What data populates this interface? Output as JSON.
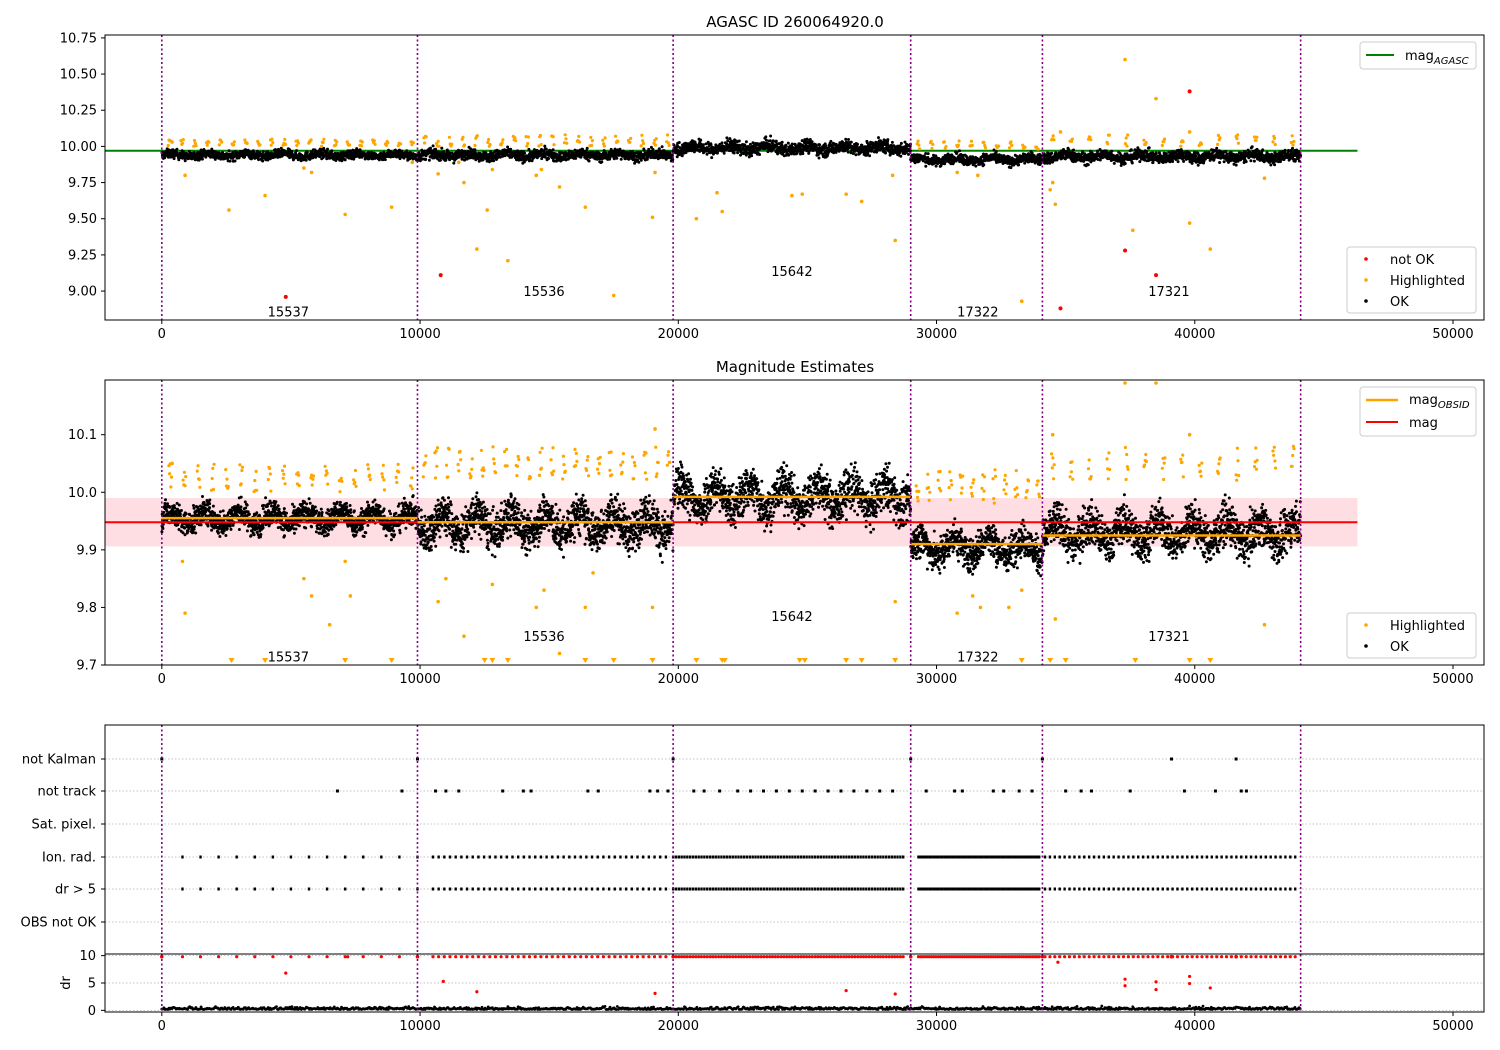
{
  "colors": {
    "not_ok": "#ff0000",
    "highlighted": "#ffa500",
    "ok": "#000000",
    "agasc_line": "#008000",
    "obsid_line": "#ffa500",
    "mag_line": "#ff0000",
    "band": "#ffb6c1",
    "vline": "#800080",
    "grid": "#b0b0b0"
  },
  "chart_data": [
    {
      "type": "scatter",
      "title": "AGASC ID 260064920.0",
      "x_ticks": [
        0,
        10000,
        20000,
        30000,
        40000,
        50000
      ],
      "y_ticks": [
        "9.00",
        "9.25",
        "9.50",
        "9.75",
        "10.00",
        "10.25",
        "10.50",
        "10.75"
      ],
      "xlim": [
        -2200,
        51200
      ],
      "ylim": [
        8.8,
        10.77
      ],
      "obsid_boundaries": [
        0,
        9900,
        19800,
        29000,
        34100,
        44100
      ],
      "obsids": [
        {
          "label": "15537",
          "x": 4900,
          "y": 8.86
        },
        {
          "label": "15536",
          "x": 14800,
          "y": 9.0
        },
        {
          "label": "15642",
          "x": 24400,
          "y": 9.14
        },
        {
          "label": "17322",
          "x": 31600,
          "y": 8.86
        },
        {
          "label": "17321",
          "x": 39000,
          "y": 9.0
        }
      ],
      "mag_agasc": 9.97,
      "mag_agasc_xrange": [
        -2200,
        46300
      ],
      "ok_segments": [
        {
          "x": [
            0,
            9900
          ],
          "center": 9.94,
          "spread": 0.03
        },
        {
          "x": [
            9900,
            19800
          ],
          "center": 9.94,
          "spread": 0.035
        },
        {
          "x": [
            19800,
            29000
          ],
          "center": 9.99,
          "spread": 0.045
        },
        {
          "x": [
            29000,
            34100
          ],
          "center": 9.91,
          "spread": 0.035
        },
        {
          "x": [
            34100,
            44100
          ],
          "center": 9.93,
          "spread": 0.04
        }
      ],
      "highlighted_points": [
        [
          400,
          10.03
        ],
        [
          900,
          9.8
        ],
        [
          2600,
          9.56
        ],
        [
          4000,
          9.66
        ],
        [
          5500,
          9.85
        ],
        [
          5800,
          9.82
        ],
        [
          7100,
          9.53
        ],
        [
          8900,
          9.58
        ],
        [
          9700,
          9.89
        ],
        [
          10700,
          9.81
        ],
        [
          11500,
          9.89
        ],
        [
          11700,
          9.75
        ],
        [
          12200,
          9.29
        ],
        [
          12600,
          9.56
        ],
        [
          12800,
          9.84
        ],
        [
          13400,
          9.21
        ],
        [
          14500,
          9.8
        ],
        [
          14700,
          9.84
        ],
        [
          15400,
          9.72
        ],
        [
          16400,
          9.58
        ],
        [
          17500,
          8.97
        ],
        [
          19000,
          9.51
        ],
        [
          19100,
          9.82
        ],
        [
          20700,
          9.5
        ],
        [
          21500,
          9.68
        ],
        [
          21700,
          9.55
        ],
        [
          24400,
          9.66
        ],
        [
          24800,
          9.67
        ],
        [
          26500,
          9.67
        ],
        [
          27100,
          9.62
        ],
        [
          28400,
          9.35
        ],
        [
          28300,
          9.8
        ],
        [
          30800,
          9.82
        ],
        [
          31600,
          9.8
        ],
        [
          33300,
          8.93
        ],
        [
          34400,
          9.7
        ],
        [
          34500,
          9.75
        ],
        [
          34600,
          9.6
        ],
        [
          34800,
          10.1
        ],
        [
          37300,
          10.6
        ],
        [
          37600,
          9.42
        ],
        [
          38500,
          10.33
        ],
        [
          39800,
          10.1
        ],
        [
          39800,
          9.47
        ],
        [
          40600,
          9.29
        ],
        [
          42700,
          9.78
        ]
      ],
      "highlighted_clusters": [
        {
          "x": [
            0,
            9900
          ],
          "count": 20,
          "y": [
            10.0,
            10.05
          ]
        },
        {
          "x": [
            9900,
            19800
          ],
          "count": 20,
          "y": [
            10.0,
            10.08
          ]
        },
        {
          "x": [
            29000,
            34100
          ],
          "count": 10,
          "y": [
            9.98,
            10.04
          ]
        },
        {
          "x": [
            34100,
            44100
          ],
          "count": 14,
          "y": [
            10.0,
            10.08
          ]
        }
      ],
      "not_ok_points": [
        [
          4800,
          8.96
        ],
        [
          10800,
          9.11
        ],
        [
          34800,
          8.88
        ],
        [
          37300,
          9.28
        ],
        [
          38500,
          9.11
        ],
        [
          39800,
          10.38
        ]
      ],
      "legends": [
        {
          "entries": [
            "mag$AGASC"
          ]
        },
        {
          "entries": [
            "not OK",
            "Highlighted",
            "OK"
          ]
        }
      ]
    },
    {
      "type": "scatter",
      "title": "Magnitude Estimates",
      "x_ticks": [
        0,
        10000,
        20000,
        30000,
        40000,
        50000
      ],
      "y_ticks": [
        "9.7",
        "9.8",
        "9.9",
        "10.0",
        "10.1"
      ],
      "xlim": [
        -2200,
        51200
      ],
      "ylim": [
        9.7,
        10.195
      ],
      "obsid_boundaries": [
        0,
        9900,
        19800,
        29000,
        34100,
        44100
      ],
      "obsids": [
        {
          "label": "15537",
          "x": 4900,
          "y": 9.715
        },
        {
          "label": "15536",
          "x": 14800,
          "y": 9.75
        },
        {
          "label": "15642",
          "x": 24400,
          "y": 9.785
        },
        {
          "label": "17322",
          "x": 31600,
          "y": 9.715
        },
        {
          "label": "17321",
          "x": 39000,
          "y": 9.75
        }
      ],
      "mag": 9.948,
      "mag_band": [
        9.906,
        9.99
      ],
      "mag_xrange": [
        -2200,
        46300
      ],
      "mag_obsid": [
        {
          "x": [
            0,
            9900
          ],
          "value": 9.955
        },
        {
          "x": [
            9900,
            19800
          ],
          "value": 9.948
        },
        {
          "x": [
            19800,
            29000
          ],
          "value": 9.992
        },
        {
          "x": [
            29000,
            34100
          ],
          "value": 9.91
        },
        {
          "x": [
            34100,
            44100
          ],
          "value": 9.925
        }
      ],
      "ok_segments": [
        {
          "x": [
            0,
            9900
          ],
          "center": 9.955,
          "spread": 0.022
        },
        {
          "x": [
            9900,
            19800
          ],
          "center": 9.945,
          "spread": 0.035
        },
        {
          "x": [
            19800,
            29000
          ],
          "center": 9.992,
          "spread": 0.038
        },
        {
          "x": [
            29000,
            34100
          ],
          "center": 9.905,
          "spread": 0.03
        },
        {
          "x": [
            34100,
            44100
          ],
          "center": 9.93,
          "spread": 0.035
        }
      ],
      "highlighted_points": [
        [
          400,
          10.05
        ],
        [
          900,
          9.79
        ],
        [
          800,
          9.88
        ],
        [
          5500,
          9.85
        ],
        [
          5800,
          9.82
        ],
        [
          6500,
          9.77
        ],
        [
          7300,
          9.82
        ],
        [
          7100,
          9.88
        ],
        [
          10700,
          9.81
        ],
        [
          11000,
          9.85
        ],
        [
          11700,
          9.75
        ],
        [
          12800,
          9.84
        ],
        [
          14500,
          9.8
        ],
        [
          14800,
          9.83
        ],
        [
          15400,
          9.72
        ],
        [
          16400,
          9.8
        ],
        [
          16700,
          9.86
        ],
        [
          19000,
          9.8
        ],
        [
          19100,
          10.11
        ],
        [
          28400,
          9.81
        ],
        [
          30800,
          9.79
        ],
        [
          31400,
          9.82
        ],
        [
          31700,
          9.8
        ],
        [
          32800,
          9.8
        ],
        [
          33300,
          9.83
        ],
        [
          34500,
          10.1
        ],
        [
          34600,
          9.78
        ],
        [
          37300,
          10.19
        ],
        [
          38500,
          10.19
        ],
        [
          39800,
          10.1
        ],
        [
          42700,
          9.77
        ]
      ],
      "highlighted_clusters": [
        {
          "x": [
            0,
            9900
          ],
          "count": 18,
          "y": [
            10.0,
            10.05
          ]
        },
        {
          "x": [
            9900,
            19800
          ],
          "count": 22,
          "y": [
            10.02,
            10.08
          ]
        },
        {
          "x": [
            29000,
            34100
          ],
          "count": 12,
          "y": [
            9.98,
            10.04
          ]
        },
        {
          "x": [
            34100,
            44100
          ],
          "count": 14,
          "y": [
            10.02,
            10.08
          ]
        }
      ],
      "below_range_markers": [
        2700,
        4000,
        7100,
        8900,
        12500,
        12800,
        13400,
        16400,
        17500,
        19000,
        20700,
        21700,
        21800,
        24700,
        24900,
        26500,
        27100,
        28400,
        33300,
        34400,
        35000,
        37700,
        39800,
        40600
      ],
      "legends": [
        {
          "entries": [
            "mag$OBSID",
            "mag"
          ]
        },
        {
          "entries": [
            "Highlighted",
            "OK"
          ]
        }
      ]
    },
    {
      "type": "scatter",
      "title": "",
      "x_ticks": [
        0,
        10000,
        20000,
        30000,
        40000,
        50000
      ],
      "xlim": [
        -2200,
        51200
      ],
      "obsid_boundaries": [
        0,
        9900,
        19800,
        29000,
        34100,
        44100
      ],
      "flag_labels": [
        "not Kalman",
        "not track",
        "Sat. pixel.",
        "Ion. rad.",
        "dr > 5",
        "OBS not OK"
      ],
      "not_kalman_x": [
        0,
        9900,
        19800,
        29000,
        34100,
        39100,
        41600
      ],
      "not_track_x": [
        6800,
        9300,
        10600,
        11000,
        11500,
        13200,
        14000,
        14300,
        16500,
        16900,
        18900,
        19200,
        19600,
        20600,
        21000,
        21600,
        22300,
        22800,
        23300,
        23800,
        24300,
        24800,
        25300,
        25800,
        26300,
        26800,
        27300,
        27800,
        28300,
        29600,
        30700,
        31000,
        32200,
        32600,
        33200,
        33700,
        35000,
        35600,
        36000,
        37500,
        39600,
        40800,
        41800,
        42000
      ],
      "ion_dr_segments": [
        {
          "x": [
            800,
            9900
          ],
          "step": 700
        },
        {
          "x": [
            10500,
            19600
          ],
          "step": 220
        },
        {
          "x": [
            19800,
            28800
          ],
          "step": 110
        },
        {
          "x": [
            29300,
            34000
          ],
          "step": 85
        },
        {
          "x": [
            34200,
            43900
          ],
          "step": 190
        }
      ],
      "dr_subplot": {
        "ylabel": "dr",
        "y_ticks": [
          "0",
          "5",
          "10"
        ],
        "ylim": [
          -0.3,
          10.3
        ],
        "red_spikes": [
          [
            4800,
            6.8
          ],
          [
            7200,
            9.8
          ],
          [
            10900,
            5.3
          ],
          [
            12200,
            3.4
          ],
          [
            19100,
            3.1
          ],
          [
            26500,
            3.6
          ],
          [
            28400,
            3.0
          ],
          [
            34700,
            8.8
          ],
          [
            37300,
            5.7
          ],
          [
            37300,
            4.5
          ],
          [
            38500,
            5.2
          ],
          [
            38500,
            3.8
          ],
          [
            39800,
            6.2
          ],
          [
            39800,
            4.9
          ],
          [
            40600,
            4.1
          ]
        ]
      }
    }
  ]
}
